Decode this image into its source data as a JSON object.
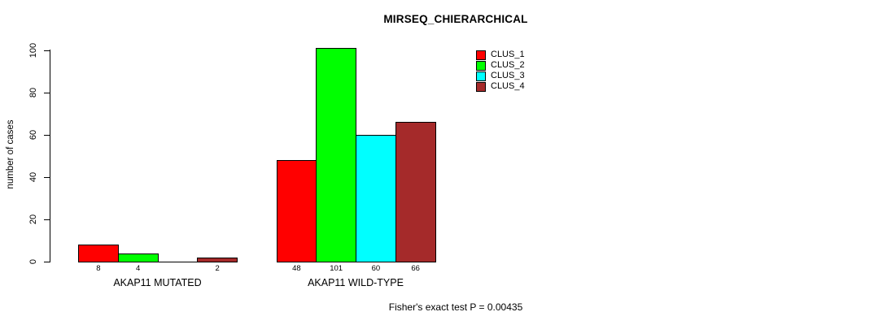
{
  "chart_data": {
    "type": "bar",
    "title": "MIRSEQ_CHIERARCHICAL",
    "ylabel": "number of cases",
    "xlabel": "",
    "ylim": [
      0,
      100
    ],
    "yticks": [
      0,
      20,
      40,
      60,
      80,
      100
    ],
    "grid": false,
    "legend_position": "top-right",
    "categories": [
      "AKAP11 MUTATED",
      "AKAP11 WILD-TYPE"
    ],
    "series": [
      {
        "name": "CLUS_1",
        "color": "#FF0000",
        "values": [
          8,
          48
        ]
      },
      {
        "name": "CLUS_2",
        "color": "#00FF00",
        "values": [
          4,
          101
        ]
      },
      {
        "name": "CLUS_3",
        "color": "#00FFFF",
        "values": [
          0,
          60
        ]
      },
      {
        "name": "CLUS_4",
        "color": "#A52A2A",
        "values": [
          2,
          66
        ]
      }
    ],
    "bar_labels": [
      [
        "8",
        "4",
        "",
        "2"
      ],
      [
        "48",
        "101",
        "60",
        "66"
      ]
    ],
    "annotation": "Fisher's exact test P = 0.00435",
    "axis_color": "#000000",
    "bar_border_color": "#000000"
  }
}
